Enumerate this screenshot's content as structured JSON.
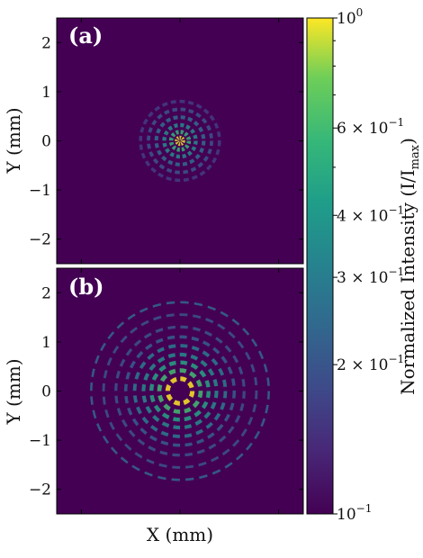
{
  "chart_data": {
    "type": "heatmap",
    "colormap": "viridis",
    "xlabel": "X (mm)",
    "ylabel": "Y (mm)",
    "xlim": [
      -2.5,
      2.5
    ],
    "ylim": [
      -2.5,
      2.5
    ],
    "x_ticks": [
      -2,
      0,
      2
    ],
    "y_tick_labels": [
      "2",
      "1",
      "0",
      "−1",
      "−2"
    ],
    "y_tick_values": [
      2,
      1,
      0,
      -1,
      -2
    ],
    "panels": [
      {
        "label": "(a)",
        "description_rings": [
          {
            "r": 0.06,
            "intensity": 0.95
          },
          {
            "r": 0.18,
            "intensity": 0.55
          },
          {
            "r": 0.32,
            "intensity": 0.35
          },
          {
            "r": 0.48,
            "intensity": 0.25
          },
          {
            "r": 0.64,
            "intensity": 0.2
          },
          {
            "r": 0.8,
            "intensity": 0.16
          }
        ]
      },
      {
        "label": "(b)",
        "description_rings": [
          {
            "r": 0.25,
            "intensity": 1.0
          },
          {
            "r": 0.42,
            "intensity": 0.6
          },
          {
            "r": 0.58,
            "intensity": 0.45
          },
          {
            "r": 0.74,
            "intensity": 0.35
          },
          {
            "r": 0.92,
            "intensity": 0.3
          },
          {
            "r": 1.1,
            "intensity": 0.22
          },
          {
            "r": 1.3,
            "intensity": 0.2
          },
          {
            "r": 1.55,
            "intensity": 0.2
          },
          {
            "r": 1.8,
            "intensity": 0.24
          }
        ]
      }
    ],
    "colorbar": {
      "label": "Normalized Intensity (I/I_max)",
      "label_main": "Normalized Intensity (I/I",
      "label_sub": "max",
      "label_close": ")",
      "scale": "log",
      "range": [
        0.1,
        1.0
      ],
      "tick_labels": [
        {
          "value": 1.0,
          "base": "10",
          "exp": "0"
        },
        {
          "value": 0.6,
          "base": "6 × 10",
          "exp": "−1"
        },
        {
          "value": 0.4,
          "base": "4 × 10",
          "exp": "−1"
        },
        {
          "value": 0.3,
          "base": "3 × 10",
          "exp": "−1"
        },
        {
          "value": 0.2,
          "base": "2 × 10",
          "exp": "−1"
        },
        {
          "value": 0.1,
          "base": "10",
          "exp": "−1"
        }
      ]
    }
  }
}
